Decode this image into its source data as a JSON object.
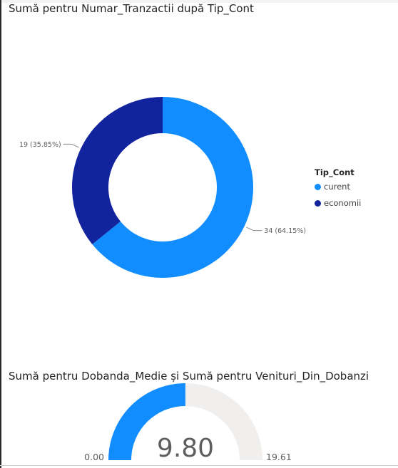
{
  "chart_data": [
    {
      "type": "pie",
      "title": "Sumă pentru Numar_Tranzactii după Tip_Cont",
      "legend": {
        "title": "Tip_Cont",
        "position": "right"
      },
      "series": [
        {
          "name": "curent",
          "value": 34,
          "label": "34 (64.15%)",
          "color": "#118dff"
        },
        {
          "name": "economii",
          "value": 19,
          "label": "19 (35.85%)",
          "color": "#12239e"
        }
      ]
    },
    {
      "type": "gauge",
      "title": "Sumă pentru Dobanda_Medie și Sumă pentru Venituri_Din_Dobanzi",
      "value": 9.8,
      "value_label": "9.80",
      "min": 0,
      "min_label": "0.00",
      "max": 19.61,
      "max_label": "19.61",
      "fill_color": "#118dff",
      "track_color": "#f0efee"
    }
  ]
}
